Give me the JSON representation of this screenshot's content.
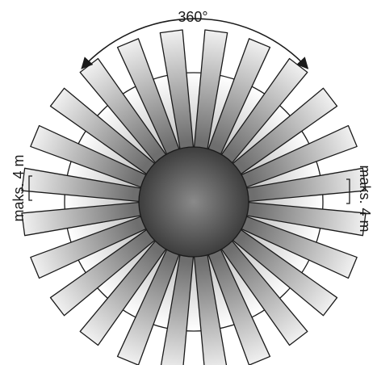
{
  "labels": {
    "angle": "360°",
    "range_left": "maks. 4 m",
    "range_right": "maks. 4 m"
  },
  "diagram": {
    "beam_count": 24,
    "colors": {
      "stroke": "#1a1a1a",
      "center_dark": "#3d3d3d",
      "center_light": "#8a8a8a",
      "beam_dark": "#6e6e6e",
      "beam_light": "#f2f2f2",
      "halo_inner": "#bdbdbd",
      "halo_outer": "#ffffff"
    }
  }
}
